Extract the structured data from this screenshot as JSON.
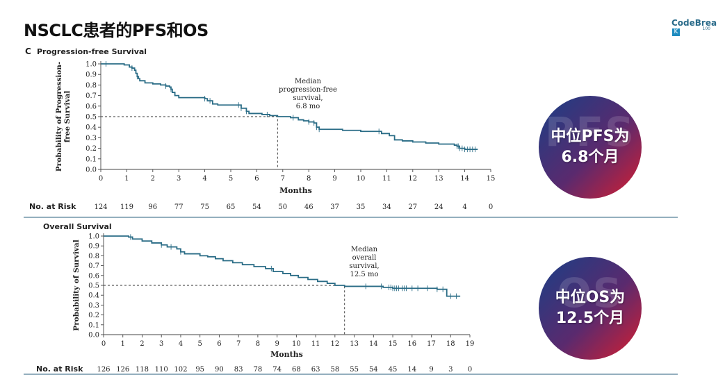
{
  "slide": {
    "title": "NSCLC患者的PFS和OS"
  },
  "logo": {
    "text": "CodeBrea",
    "box_letter": "K",
    "sub": "100"
  },
  "badges": [
    {
      "bg_text": "PFS",
      "line1": "中位PFS为",
      "line2": "6.8个月"
    },
    {
      "bg_text": "OS",
      "line1": "中位OS为",
      "line2": "12.5个月"
    }
  ],
  "colors": {
    "curve": "#2a6c86",
    "badge_start": "#1a3f86",
    "badge_end": "#d81e2f",
    "divider": "#2a5f7e"
  },
  "chart_data": [
    {
      "type": "line",
      "panel_letter": "C",
      "title": "Progression-free Survival",
      "xlabel": "Months",
      "ylabel": [
        "Probability of Progression-",
        "free Survival"
      ],
      "xlim": [
        0,
        15
      ],
      "ylim": [
        0,
        1.0
      ],
      "x_ticks": [
        "0",
        "1",
        "2",
        "3",
        "4",
        "5",
        "6",
        "7",
        "8",
        "9",
        "10",
        "11",
        "12",
        "13",
        "14",
        "15"
      ],
      "y_ticks": [
        "0.0",
        "0.1",
        "0.2",
        "0.3",
        "0.4",
        "0.5",
        "0.6",
        "0.7",
        "0.8",
        "0.9",
        "1.0"
      ],
      "series": [
        {
          "step_points": [
            [
              0,
              1.0
            ],
            [
              0.2,
              1.0
            ],
            [
              0.4,
              1.0
            ],
            [
              0.7,
              1.0
            ],
            [
              0.9,
              0.99
            ],
            [
              1.1,
              0.97
            ],
            [
              1.2,
              0.96
            ],
            [
              1.3,
              0.94
            ],
            [
              1.35,
              0.91
            ],
            [
              1.4,
              0.88
            ],
            [
              1.45,
              0.86
            ],
            [
              1.5,
              0.84
            ],
            [
              1.7,
              0.82
            ],
            [
              2.0,
              0.81
            ],
            [
              2.3,
              0.8
            ],
            [
              2.5,
              0.79
            ],
            [
              2.65,
              0.78
            ],
            [
              2.7,
              0.76
            ],
            [
              2.75,
              0.73
            ],
            [
              2.85,
              0.7
            ],
            [
              3.0,
              0.68
            ],
            [
              3.5,
              0.68
            ],
            [
              4.0,
              0.67
            ],
            [
              4.1,
              0.65
            ],
            [
              4.3,
              0.62
            ],
            [
              4.5,
              0.61
            ],
            [
              5.0,
              0.61
            ],
            [
              5.4,
              0.58
            ],
            [
              5.6,
              0.55
            ],
            [
              5.7,
              0.53
            ],
            [
              6.2,
              0.52
            ],
            [
              6.5,
              0.51
            ],
            [
              6.8,
              0.5
            ],
            [
              7.3,
              0.49
            ],
            [
              7.6,
              0.47
            ],
            [
              7.8,
              0.46
            ],
            [
              8.0,
              0.45
            ],
            [
              8.2,
              0.44
            ],
            [
              8.3,
              0.4
            ],
            [
              8.4,
              0.38
            ],
            [
              9.0,
              0.38
            ],
            [
              9.3,
              0.37
            ],
            [
              10.0,
              0.36
            ],
            [
              10.8,
              0.34
            ],
            [
              11.1,
              0.32
            ],
            [
              11.3,
              0.28
            ],
            [
              11.6,
              0.27
            ],
            [
              12.0,
              0.26
            ],
            [
              12.5,
              0.25
            ],
            [
              13.0,
              0.24
            ],
            [
              13.5,
              0.24
            ],
            [
              13.6,
              0.23
            ],
            [
              13.7,
              0.22
            ],
            [
              13.8,
              0.2
            ],
            [
              14.0,
              0.19
            ],
            [
              14.5,
              0.19
            ]
          ],
          "censor_times": [
            0.2,
            1.2,
            1.4,
            2.5,
            2.7,
            4.0,
            4.2,
            5.3,
            5.4,
            5.6,
            6.4,
            7.4,
            8.0,
            8.2,
            8.3,
            8.4,
            10.7,
            13.7,
            13.75,
            13.8,
            13.9,
            14.0,
            14.1,
            14.2,
            14.3,
            14.4
          ]
        }
      ],
      "median": {
        "x": 6.8,
        "y": 0.5,
        "label": [
          "Median",
          "progression-free",
          "survival,",
          "6.8 mo"
        ]
      },
      "risk": {
        "label": "No. at Risk",
        "values": [
          "124",
          "119",
          "96",
          "77",
          "75",
          "65",
          "54",
          "50",
          "46",
          "37",
          "35",
          "34",
          "27",
          "24",
          "4",
          "0"
        ]
      }
    },
    {
      "type": "line",
      "panel_letter": "",
      "title": "Overall Survival",
      "xlabel": "Months",
      "ylabel": [
        "Probability of Survival"
      ],
      "xlim": [
        0,
        19
      ],
      "ylim": [
        0,
        1.0
      ],
      "x_ticks": [
        "0",
        "1",
        "2",
        "3",
        "4",
        "5",
        "6",
        "7",
        "8",
        "9",
        "10",
        "11",
        "12",
        "13",
        "14",
        "15",
        "16",
        "17",
        "18",
        "19"
      ],
      "y_ticks": [
        "0.0",
        "0.1",
        "0.2",
        "0.3",
        "0.4",
        "0.5",
        "0.6",
        "0.7",
        "0.8",
        "0.9",
        "1.0"
      ],
      "series": [
        {
          "step_points": [
            [
              0,
              1.0
            ],
            [
              1.0,
              1.0
            ],
            [
              1.3,
              0.99
            ],
            [
              1.5,
              0.97
            ],
            [
              2.0,
              0.95
            ],
            [
              2.5,
              0.93
            ],
            [
              3.0,
              0.91
            ],
            [
              3.3,
              0.89
            ],
            [
              3.8,
              0.87
            ],
            [
              4.0,
              0.84
            ],
            [
              4.2,
              0.82
            ],
            [
              5.0,
              0.8
            ],
            [
              5.4,
              0.79
            ],
            [
              5.8,
              0.77
            ],
            [
              6.2,
              0.75
            ],
            [
              6.7,
              0.73
            ],
            [
              7.2,
              0.71
            ],
            [
              7.8,
              0.69
            ],
            [
              8.4,
              0.67
            ],
            [
              8.8,
              0.64
            ],
            [
              9.3,
              0.62
            ],
            [
              9.7,
              0.6
            ],
            [
              10.1,
              0.58
            ],
            [
              10.6,
              0.56
            ],
            [
              11.1,
              0.54
            ],
            [
              11.6,
              0.52
            ],
            [
              12.0,
              0.5
            ],
            [
              12.5,
              0.49
            ],
            [
              13.5,
              0.49
            ],
            [
              14.5,
              0.48
            ],
            [
              15.0,
              0.47
            ],
            [
              16.5,
              0.47
            ],
            [
              17.3,
              0.46
            ],
            [
              17.7,
              0.46
            ],
            [
              17.8,
              0.39
            ],
            [
              18.5,
              0.39
            ]
          ],
          "censor_times": [
            1.4,
            3.0,
            3.5,
            4.0,
            8.7,
            13.6,
            14.4,
            14.8,
            14.9,
            15.0,
            15.1,
            15.2,
            15.3,
            15.5,
            15.6,
            15.7,
            16.0,
            16.3,
            16.8,
            17.3,
            17.6,
            18.0,
            18.3
          ]
        }
      ],
      "median": {
        "x": 12.5,
        "y": 0.5,
        "label": [
          "Median",
          "overall",
          "survival,",
          "12.5 mo"
        ]
      },
      "risk": {
        "label": "No. at Risk",
        "values": [
          "126",
          "126",
          "118",
          "110",
          "102",
          "95",
          "90",
          "83",
          "78",
          "74",
          "68",
          "63",
          "58",
          "55",
          "54",
          "45",
          "14",
          "9",
          "3",
          "0"
        ]
      }
    }
  ]
}
